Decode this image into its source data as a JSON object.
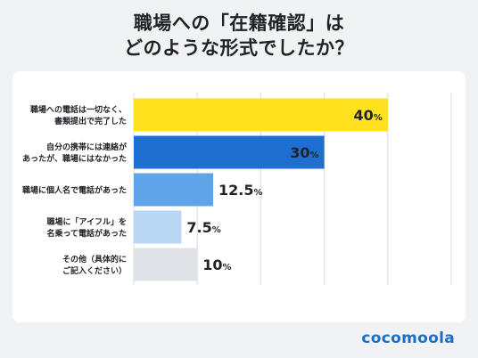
{
  "title": {
    "line1": "職場への「在籍確認」は",
    "line2": "どのような形式でしたか？"
  },
  "logo": "cocomoola",
  "colors": {
    "background": "#f1f2f4",
    "card": "#ffffff",
    "grid": "#d9dcdf",
    "text": "#1f2226"
  },
  "chart_data": {
    "type": "bar",
    "orientation": "horizontal",
    "xlim": [
      0,
      50
    ],
    "grid": true,
    "bars": [
      {
        "label_lines": [
          "職場への電話は一切なく、",
          "書類提出で完了した"
        ],
        "value": 40,
        "value_main": "40",
        "value_unit": "%",
        "color": "#ffe11e"
      },
      {
        "label_lines": [
          "自分の携帯には連絡が",
          "あったが、職場にはなかった"
        ],
        "value": 30,
        "value_main": "30",
        "value_unit": "%",
        "color": "#1f6fd1"
      },
      {
        "label_lines": [
          "職場に個人名で電話があった"
        ],
        "value": 12.5,
        "value_main": "12.5",
        "value_unit": "%",
        "color": "#5fa3e8"
      },
      {
        "label_lines": [
          "職場に「アイフル」を",
          "名乗って電話があった"
        ],
        "value": 7.5,
        "value_main": "7.5",
        "value_unit": "%",
        "color": "#b9d6f4"
      },
      {
        "label_lines": [
          "その他（具体的に",
          "ご記入ください）"
        ],
        "value": 10,
        "value_main": "10",
        "value_unit": "%",
        "color": "#dfe2e7"
      }
    ]
  }
}
